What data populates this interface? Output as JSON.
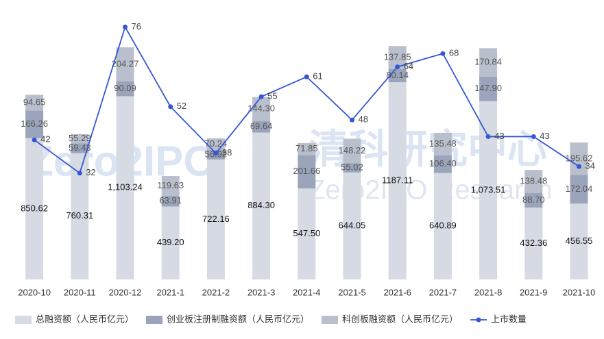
{
  "chart_data": {
    "type": "bar",
    "categories": [
      "2020-10",
      "2020-11",
      "2020-12",
      "2021-1",
      "2021-2",
      "2021-3",
      "2021-4",
      "2021-5",
      "2021-6",
      "2021-7",
      "2021-8",
      "2021-9",
      "2021-10"
    ],
    "stacked": true,
    "series": [
      {
        "name": "总融资额（人民币亿元）",
        "color": "#d5dae3",
        "values": [
          850.62,
          760.31,
          1103.24,
          439.2,
          722.16,
          884.3,
          547.5,
          644.05,
          1187.11,
          640.89,
          1073.51,
          432.36,
          456.55
        ],
        "value_labels": [
          "850.62",
          "760.31",
          "1,103.24",
          "439.20",
          "722.16",
          "884.30",
          "547.50",
          "644.05",
          "1187.11",
          "640.89",
          "1,073.51",
          "432.36",
          "456.55"
        ]
      },
      {
        "name": "创业板注册制融资额（人民币亿元）",
        "color": "#9aa4bb",
        "values": [
          166.26,
          59.43,
          90.09,
          63.91,
          56.92,
          69.64,
          201.66,
          55.02,
          80.14,
          106.4,
          147.9,
          88.7,
          172.04
        ],
        "value_labels": [
          "166.26",
          "59.43",
          "90.09",
          "63.91",
          "56.92",
          "69.64",
          "201.66",
          "55.02",
          "80.14",
          "106.40",
          "147.90",
          "88.70",
          "172.04"
        ]
      },
      {
        "name": "科创板融资额（人民币亿元）",
        "color": "#b9bfcc",
        "values": [
          94.65,
          55.29,
          204.27,
          119.63,
          70.24,
          144.3,
          71.85,
          148.22,
          137.85,
          135.48,
          170.84,
          138.48,
          195.62
        ],
        "value_labels": [
          "94.65",
          "55.29",
          "204.27",
          "119.63",
          "70.24",
          "144.30",
          "71.85",
          "148.22",
          "137.85",
          "135.48",
          "170.84",
          "138.48",
          "195.62"
        ]
      },
      {
        "name": "上市数量",
        "type": "line",
        "axis": "y2",
        "color": "#3556d6",
        "values": [
          42,
          32,
          76,
          52,
          38,
          55,
          61,
          48,
          64,
          68,
          43,
          43,
          34
        ]
      }
    ],
    "ylim": [
      0,
      1600
    ],
    "y2lim": [
      0,
      80
    ],
    "watermark": {
      "logo": "Zero2IPO",
      "cn": "清科研究中心",
      "en": "Zero2IPO Research"
    }
  }
}
